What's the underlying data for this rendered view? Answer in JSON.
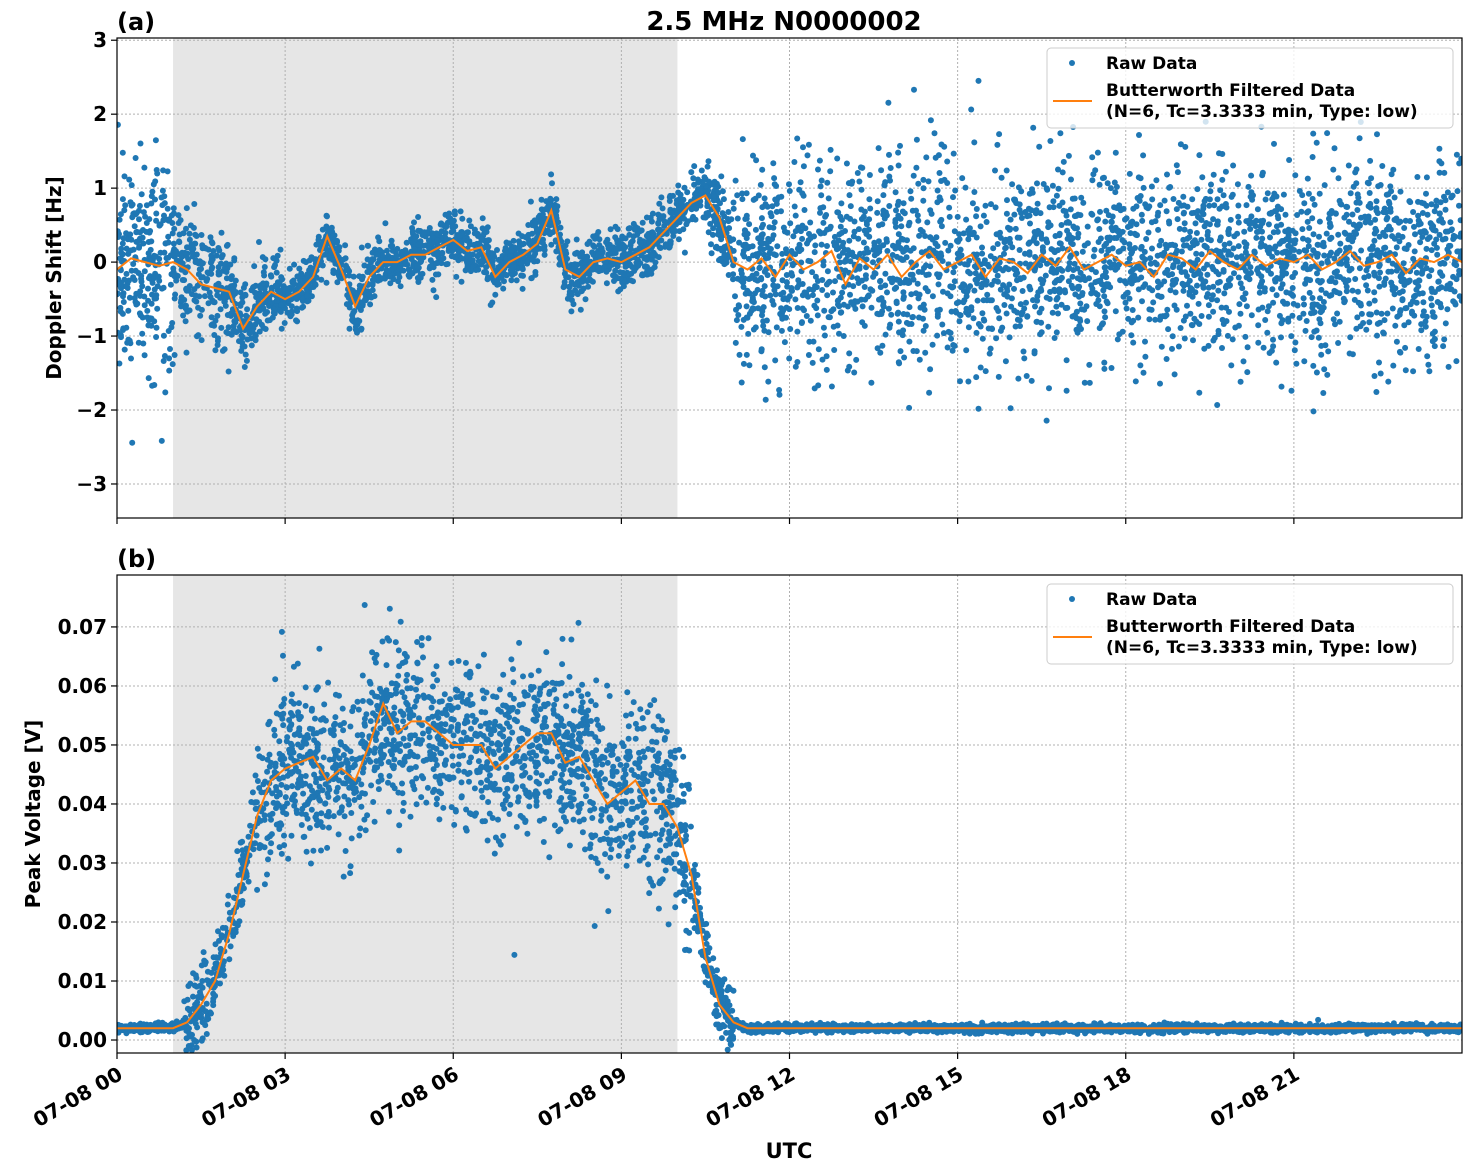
{
  "title": "2.5 MHz N0000002",
  "xlabel": "UTC",
  "colors": {
    "raw": "#1f77b4",
    "filtered": "#ff7f0e",
    "shade": "#e6e6e6",
    "grid": "#b0b0b0"
  },
  "legend": {
    "raw": "Raw Data",
    "filtered_line1": "Butterworth Filtered Data",
    "filtered_line2": "(N=6, Tc=3.3333 min, Type: low)",
    "placement": "top-right"
  },
  "x_tick_labels": [
    "07-08 00",
    "07-08 03",
    "07-08 06",
    "07-08 09",
    "07-08 12",
    "07-08 15",
    "07-08 18",
    "07-08 21"
  ],
  "chart_data": [
    {
      "type": "scatter+line",
      "panel_label": "(a)",
      "ylabel": "Doppler Shift [Hz]",
      "xunit": "hours UTC on 07-08",
      "xlim": [
        0,
        24
      ],
      "ylim": [
        -3.46,
        3.03
      ],
      "y_ticks": [
        -3,
        -2,
        -1,
        0,
        1,
        2,
        3
      ],
      "y_tick_labels": [
        "−3",
        "−2",
        "−1",
        "0",
        "1",
        "2",
        "3"
      ],
      "grid": true,
      "shaded_interval": [
        1,
        10
      ],
      "x_step": 0.25,
      "filtered": [
        -0.1,
        0.05,
        0.0,
        -0.05,
        0.0,
        -0.1,
        -0.3,
        -0.35,
        -0.4,
        -0.9,
        -0.6,
        -0.4,
        -0.5,
        -0.4,
        -0.2,
        0.35,
        -0.1,
        -0.6,
        -0.2,
        0.0,
        0.0,
        0.1,
        0.1,
        0.2,
        0.3,
        0.15,
        0.2,
        -0.2,
        0.0,
        0.1,
        0.25,
        0.7,
        -0.1,
        -0.2,
        0.0,
        0.05,
        0.0,
        0.1,
        0.2,
        0.4,
        0.6,
        0.8,
        0.9,
        0.6,
        0.0,
        -0.1,
        0.05,
        -0.2,
        0.1,
        -0.1,
        0.0,
        0.15,
        -0.3,
        0.05,
        -0.1,
        0.1,
        -0.2,
        0.0,
        0.15,
        -0.1,
        0.0,
        0.1,
        -0.2,
        0.05,
        0.0,
        -0.15,
        0.1,
        -0.05,
        0.2,
        -0.1,
        0.0,
        0.1,
        -0.05,
        0.0,
        -0.2,
        0.1,
        0.05,
        -0.1,
        0.15,
        0.0,
        -0.1,
        0.1,
        -0.05,
        0.05,
        0.0,
        0.1,
        -0.1,
        0.0,
        0.15,
        -0.05,
        0.0,
        0.1,
        -0.15,
        0.05,
        0.0,
        0.1,
        0.0
      ],
      "raw_spread": [
        {
          "from": 0,
          "to": 1,
          "half_width": 1.3
        },
        {
          "from": 1,
          "to": 2,
          "half_width": 0.8
        },
        {
          "from": 2,
          "to": 3,
          "half_width": 0.5
        },
        {
          "from": 3,
          "to": 10.5,
          "half_width": 0.35
        },
        {
          "from": 10.5,
          "to": 11,
          "half_width": 0.5
        },
        {
          "from": 11,
          "to": 24,
          "half_width": 1.2
        }
      ]
    },
    {
      "type": "scatter+line",
      "panel_label": "(b)",
      "ylabel": "Peak Voltage [V]",
      "xunit": "hours UTC on 07-08",
      "xlim": [
        0,
        24
      ],
      "ylim": [
        -0.0022,
        0.0788
      ],
      "y_ticks": [
        0,
        0.01,
        0.02,
        0.03,
        0.04,
        0.05,
        0.06,
        0.07
      ],
      "y_tick_labels": [
        "0.00",
        "0.01",
        "0.02",
        "0.03",
        "0.04",
        "0.05",
        "0.06",
        "0.07"
      ],
      "grid": true,
      "shaded_interval": [
        1,
        10
      ],
      "x_step": 0.25,
      "filtered": [
        0.002,
        0.002,
        0.002,
        0.002,
        0.002,
        0.003,
        0.006,
        0.01,
        0.018,
        0.028,
        0.038,
        0.044,
        0.046,
        0.047,
        0.048,
        0.044,
        0.046,
        0.044,
        0.05,
        0.057,
        0.052,
        0.054,
        0.054,
        0.052,
        0.05,
        0.05,
        0.05,
        0.046,
        0.048,
        0.05,
        0.052,
        0.052,
        0.047,
        0.048,
        0.044,
        0.04,
        0.042,
        0.044,
        0.04,
        0.04,
        0.036,
        0.028,
        0.014,
        0.006,
        0.003,
        0.002,
        0.002,
        0.002,
        0.002,
        0.002,
        0.002,
        0.002,
        0.002,
        0.002,
        0.002,
        0.002,
        0.002,
        0.002,
        0.002,
        0.002,
        0.002,
        0.002,
        0.002,
        0.002,
        0.002,
        0.002,
        0.002,
        0.002,
        0.002,
        0.002,
        0.002,
        0.002,
        0.002,
        0.002,
        0.002,
        0.002,
        0.002,
        0.002,
        0.002,
        0.002,
        0.002,
        0.002,
        0.002,
        0.002,
        0.002,
        0.002,
        0.002,
        0.002,
        0.002,
        0.002,
        0.002,
        0.002,
        0.002,
        0.002,
        0.002,
        0.002,
        0.002
      ],
      "raw_spread": [
        {
          "from": 0,
          "to": 1.2,
          "half_width": 0.0006
        },
        {
          "from": 1.2,
          "to": 2.5,
          "half_width": 0.006
        },
        {
          "from": 2.5,
          "to": 10.25,
          "half_width": 0.013
        },
        {
          "from": 10.25,
          "to": 11,
          "half_width": 0.005
        },
        {
          "from": 11,
          "to": 24,
          "half_width": 0.0006
        }
      ]
    }
  ]
}
